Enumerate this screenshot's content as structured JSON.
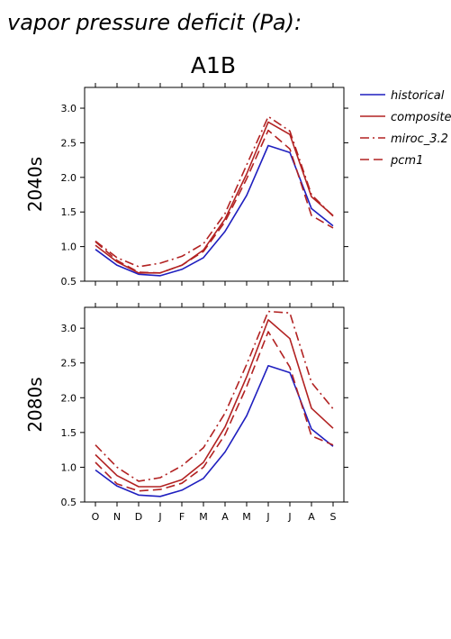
{
  "figure": {
    "title": "vapor pressure deficit (Pa):",
    "scenario": "A1B"
  },
  "legend": [
    {
      "name": "historical",
      "color": "#1f1fbf",
      "dash": "solid"
    },
    {
      "name": "composite",
      "color": "#b22222",
      "dash": "solid"
    },
    {
      "name": "miroc_3.2",
      "color": "#b22222",
      "dash": "dashdot"
    },
    {
      "name": "pcm1",
      "color": "#b22222",
      "dash": "dash"
    }
  ],
  "chart_data": [
    {
      "type": "line",
      "panel_label": "2040s",
      "categories": [
        "O",
        "N",
        "D",
        "J",
        "F",
        "M",
        "A",
        "M",
        "J",
        "J",
        "A",
        "S"
      ],
      "ylim": [
        0.5,
        3.3
      ],
      "yticks": [
        0.5,
        1.0,
        1.5,
        2.0,
        2.5,
        3.0
      ],
      "series": [
        {
          "name": "historical",
          "values": [
            0.96,
            0.73,
            0.6,
            0.58,
            0.67,
            0.84,
            1.22,
            1.74,
            2.46,
            2.36,
            1.55,
            1.3
          ]
        },
        {
          "name": "composite",
          "values": [
            1.02,
            0.78,
            0.62,
            0.62,
            0.73,
            0.95,
            1.4,
            2.05,
            2.8,
            2.62,
            1.72,
            1.45
          ]
        },
        {
          "name": "miroc_3.2",
          "values": [
            1.08,
            0.84,
            0.71,
            0.76,
            0.86,
            1.04,
            1.48,
            2.18,
            2.88,
            2.67,
            1.75,
            1.44
          ]
        },
        {
          "name": "pcm1",
          "values": [
            1.07,
            0.8,
            0.63,
            0.62,
            0.73,
            0.93,
            1.36,
            1.98,
            2.68,
            2.41,
            1.45,
            1.27
          ]
        }
      ]
    },
    {
      "type": "line",
      "panel_label": "2080s",
      "categories": [
        "O",
        "N",
        "D",
        "J",
        "F",
        "M",
        "A",
        "M",
        "J",
        "J",
        "A",
        "S"
      ],
      "ylim": [
        0.5,
        3.3
      ],
      "yticks": [
        0.5,
        1.0,
        1.5,
        2.0,
        2.5,
        3.0
      ],
      "series": [
        {
          "name": "historical",
          "values": [
            0.96,
            0.73,
            0.6,
            0.58,
            0.67,
            0.84,
            1.22,
            1.74,
            2.46,
            2.36,
            1.55,
            1.3
          ]
        },
        {
          "name": "composite",
          "values": [
            1.18,
            0.88,
            0.72,
            0.72,
            0.82,
            1.07,
            1.58,
            2.3,
            3.12,
            2.85,
            1.85,
            1.56
          ]
        },
        {
          "name": "miroc_3.2",
          "values": [
            1.32,
            1.0,
            0.8,
            0.85,
            1.02,
            1.28,
            1.78,
            2.48,
            3.24,
            3.22,
            2.22,
            1.84
          ]
        },
        {
          "name": "pcm1",
          "values": [
            1.07,
            0.76,
            0.66,
            0.68,
            0.77,
            1.0,
            1.47,
            2.16,
            2.95,
            2.44,
            1.45,
            1.32
          ]
        }
      ]
    }
  ]
}
